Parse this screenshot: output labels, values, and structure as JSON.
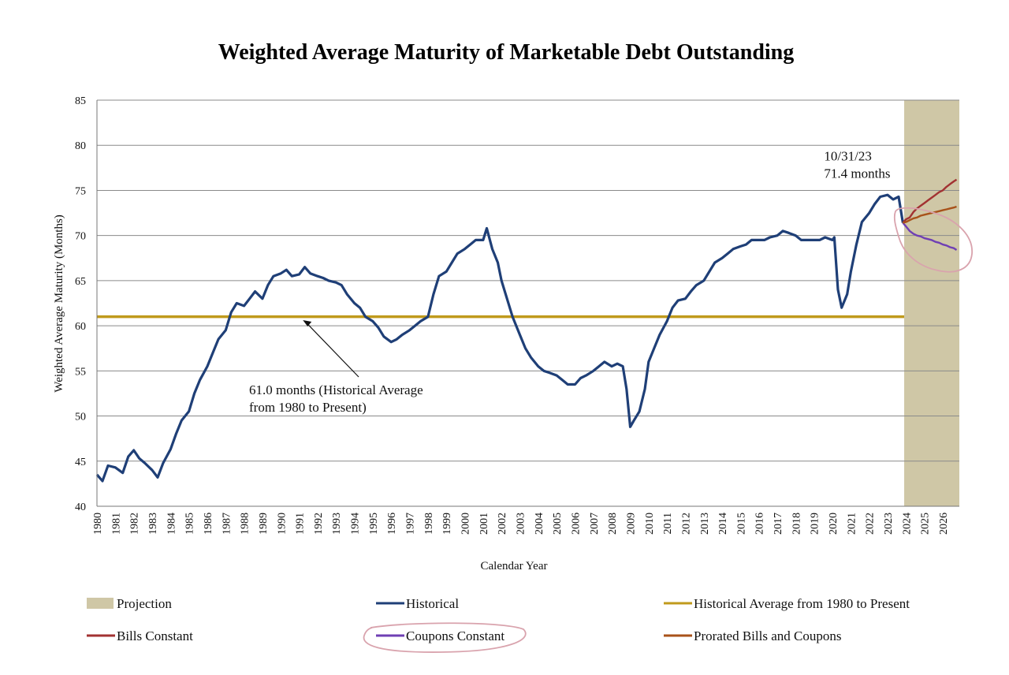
{
  "chart_data": {
    "type": "line",
    "title": "Weighted Average Maturity of Marketable Debt Outstanding",
    "xlabel": "Calendar Year",
    "ylabel": "Weighted Average Maturity (Months)",
    "ylim": [
      40,
      85
    ],
    "yticks": [
      40,
      45,
      50,
      55,
      60,
      65,
      70,
      75,
      80,
      85
    ],
    "xlim": [
      1980,
      2026.9
    ],
    "xticks": [
      "1980",
      "1981",
      "1982",
      "1983",
      "1984",
      "1985",
      "1986",
      "1987",
      "1988",
      "1989",
      "1990",
      "1991",
      "1992",
      "1993",
      "1994",
      "1995",
      "1996",
      "1997",
      "1998",
      "1999",
      "2000",
      "2001",
      "2002",
      "2003",
      "2004",
      "2005",
      "2006",
      "2007",
      "2008",
      "2009",
      "2010",
      "2011",
      "2012",
      "2013",
      "2014",
      "2015",
      "2016",
      "2017",
      "2018",
      "2019",
      "2020",
      "2021",
      "2022",
      "2023",
      "2024",
      "2025",
      "2026"
    ],
    "grid": true,
    "projection_range": [
      2023.9,
      2026.9
    ],
    "historical_average": 61.0,
    "historical_average_range": [
      1980,
      2023.9
    ],
    "annotations": [
      {
        "id": "latest",
        "lines": [
          "10/31/23",
          "71.4 months"
        ],
        "x": 2023.83,
        "y": 75.0
      },
      {
        "id": "avg",
        "lines": [
          "61.0 months (Historical Average",
          "from 1980 to Present)"
        ],
        "x": 1991.2,
        "y": 60.8
      }
    ],
    "series": [
      {
        "name": "Historical",
        "color": "#1f3f77",
        "x": [
          1980.0,
          1980.3,
          1980.6,
          1981.0,
          1981.4,
          1981.7,
          1982.0,
          1982.3,
          1982.6,
          1983.0,
          1983.3,
          1983.6,
          1984.0,
          1984.3,
          1984.6,
          1985.0,
          1985.3,
          1985.6,
          1986.0,
          1986.3,
          1986.6,
          1987.0,
          1987.3,
          1987.6,
          1988.0,
          1988.3,
          1988.6,
          1989.0,
          1989.3,
          1989.6,
          1990.0,
          1990.3,
          1990.6,
          1991.0,
          1991.3,
          1991.6,
          1992.0,
          1992.3,
          1992.6,
          1993.0,
          1993.3,
          1993.6,
          1994.0,
          1994.3,
          1994.6,
          1995.0,
          1995.3,
          1995.6,
          1996.0,
          1996.3,
          1996.6,
          1997.0,
          1997.3,
          1997.6,
          1998.0,
          1998.3,
          1998.6,
          1999.0,
          1999.3,
          1999.6,
          2000.0,
          2000.3,
          2000.6,
          2001.0,
          2001.2,
          2001.5,
          2001.8,
          2002.0,
          2002.3,
          2002.6,
          2003.0,
          2003.3,
          2003.6,
          2004.0,
          2004.3,
          2004.6,
          2005.0,
          2005.3,
          2005.6,
          2006.0,
          2006.3,
          2006.6,
          2007.0,
          2007.3,
          2007.6,
          2008.0,
          2008.3,
          2008.6,
          2008.8,
          2009.0,
          2009.2,
          2009.5,
          2009.8,
          2010.0,
          2010.3,
          2010.6,
          2011.0,
          2011.3,
          2011.6,
          2012.0,
          2012.3,
          2012.6,
          2013.0,
          2013.3,
          2013.6,
          2014.0,
          2014.3,
          2014.6,
          2015.0,
          2015.3,
          2015.6,
          2016.0,
          2016.3,
          2016.6,
          2017.0,
          2017.3,
          2017.6,
          2018.0,
          2018.3,
          2018.6,
          2019.0,
          2019.3,
          2019.6,
          2020.0,
          2020.1,
          2020.3,
          2020.5,
          2020.8,
          2021.0,
          2021.3,
          2021.6,
          2022.0,
          2022.3,
          2022.6,
          2023.0,
          2023.3,
          2023.6,
          2023.83
        ],
        "values": [
          43.5,
          42.8,
          44.5,
          44.3,
          43.7,
          45.5,
          46.2,
          45.3,
          44.8,
          44.0,
          43.2,
          44.8,
          46.3,
          48.0,
          49.5,
          50.5,
          52.5,
          54.0,
          55.5,
          57.0,
          58.5,
          59.5,
          61.5,
          62.5,
          62.2,
          63.0,
          63.8,
          63.0,
          64.5,
          65.5,
          65.8,
          66.2,
          65.5,
          65.7,
          66.5,
          65.8,
          65.5,
          65.3,
          65.0,
          64.8,
          64.5,
          63.5,
          62.5,
          62.0,
          61.0,
          60.5,
          59.8,
          58.8,
          58.2,
          58.5,
          59.0,
          59.5,
          60.0,
          60.5,
          61.0,
          63.5,
          65.5,
          66.0,
          67.0,
          68.0,
          68.5,
          69.0,
          69.5,
          69.5,
          70.8,
          68.5,
          67.0,
          65.0,
          63.0,
          61.0,
          59.0,
          57.5,
          56.5,
          55.5,
          55.0,
          54.8,
          54.5,
          54.0,
          53.5,
          53.5,
          54.2,
          54.5,
          55.0,
          55.5,
          56.0,
          55.5,
          55.8,
          55.5,
          53.0,
          48.8,
          49.5,
          50.5,
          53.0,
          56.0,
          57.5,
          59.0,
          60.5,
          62.0,
          62.8,
          63.0,
          63.8,
          64.5,
          65.0,
          66.0,
          67.0,
          67.5,
          68.0,
          68.5,
          68.8,
          69.0,
          69.5,
          69.5,
          69.5,
          69.8,
          70.0,
          70.5,
          70.3,
          70.0,
          69.5,
          69.5,
          69.5,
          69.5,
          69.8,
          69.5,
          69.8,
          64.0,
          62.0,
          63.5,
          66.0,
          69.0,
          71.5,
          72.5,
          73.5,
          74.3,
          74.5,
          74.0,
          74.3,
          71.4
        ]
      },
      {
        "name": "Bills Constant",
        "color": "#a23232",
        "x": [
          2023.83,
          2024.0,
          2024.2,
          2024.4,
          2024.6,
          2024.8,
          2025.0,
          2025.2,
          2025.4,
          2025.6,
          2025.8,
          2026.0,
          2026.2,
          2026.4,
          2026.6,
          2026.75
        ],
        "values": [
          71.4,
          71.8,
          72.0,
          72.6,
          73.0,
          73.3,
          73.6,
          73.9,
          74.2,
          74.5,
          74.8,
          75.0,
          75.4,
          75.7,
          76.0,
          76.2
        ]
      },
      {
        "name": "Coupons Constant",
        "color": "#6f3fb4",
        "x": [
          2023.83,
          2024.0,
          2024.2,
          2024.4,
          2024.6,
          2024.8,
          2025.0,
          2025.2,
          2025.4,
          2025.6,
          2025.8,
          2026.0,
          2026.2,
          2026.4,
          2026.6,
          2026.75
        ],
        "values": [
          71.4,
          71.0,
          70.5,
          70.2,
          70.0,
          69.9,
          69.7,
          69.6,
          69.5,
          69.3,
          69.2,
          69.0,
          68.9,
          68.7,
          68.6,
          68.4
        ]
      },
      {
        "name": "Prorated Bills and Coupons",
        "color": "#a8521a",
        "x": [
          2023.83,
          2024.0,
          2024.2,
          2024.4,
          2024.6,
          2024.8,
          2025.0,
          2025.2,
          2025.4,
          2025.6,
          2025.8,
          2026.0,
          2026.2,
          2026.4,
          2026.6,
          2026.75
        ],
        "values": [
          71.4,
          71.5,
          71.7,
          71.9,
          72.0,
          72.2,
          72.3,
          72.4,
          72.5,
          72.6,
          72.7,
          72.8,
          72.9,
          73.0,
          73.1,
          73.2
        ]
      }
    ],
    "legend": [
      {
        "key": "projection",
        "label": "Projection",
        "color": "#cfc7a6",
        "style": "box"
      },
      {
        "key": "historical",
        "label": "Historical",
        "color": "#1f3f77",
        "style": "line"
      },
      {
        "key": "average",
        "label": "Historical Average from 1980 to Present",
        "color": "#c09a1c",
        "style": "line"
      },
      {
        "key": "bills",
        "label": "Bills Constant",
        "color": "#a23232",
        "style": "line"
      },
      {
        "key": "coupons",
        "label": "Coupons Constant",
        "color": "#6f3fb4",
        "style": "line"
      },
      {
        "key": "prorated",
        "label": "Prorated Bills and Coupons",
        "color": "#a8521a",
        "style": "line"
      }
    ],
    "legend_placement": "bottom",
    "highlight_color": "#d9a3ad"
  }
}
